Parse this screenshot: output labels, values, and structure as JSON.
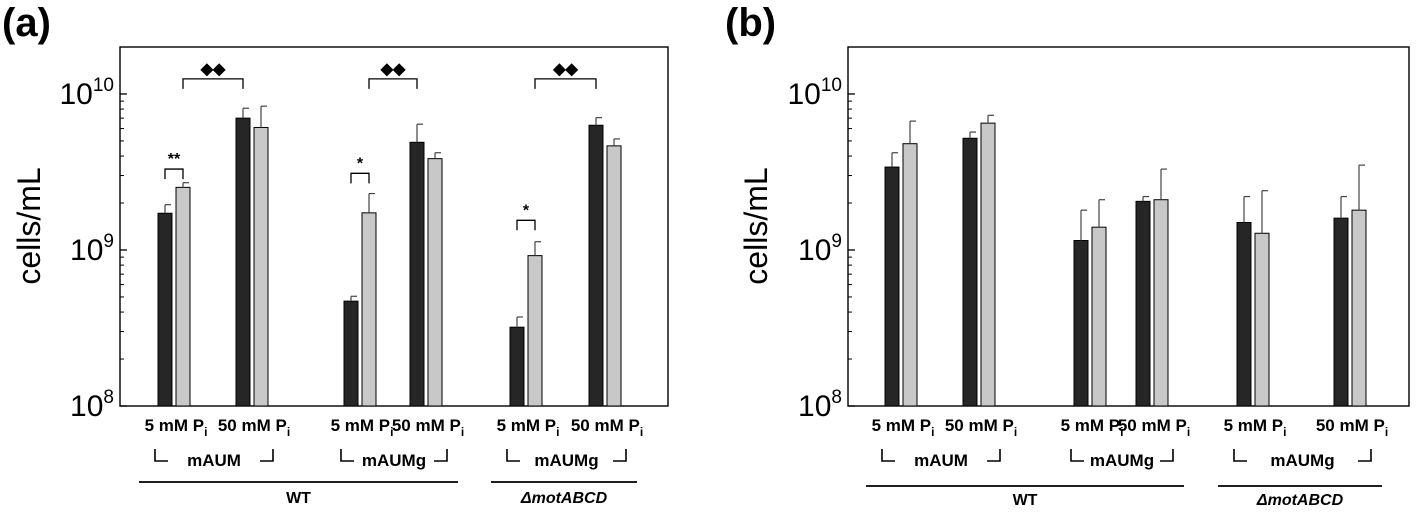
{
  "chart_data": [
    {
      "type": "bar",
      "panel_label": "(a)",
      "ylabel": "cells/mL",
      "yscale": "log",
      "ylim": [
        100000000,
        20000000000
      ],
      "yticks": [
        {
          "base": "10",
          "exp": "8",
          "value": 100000000
        },
        {
          "base": "10",
          "exp": "9",
          "value": 1000000000
        },
        {
          "base": "10",
          "exp": "10",
          "value": 10000000000
        }
      ],
      "colors": {
        "dark": "#262626",
        "light": "#c8c8c8"
      },
      "categories": [
        {
          "main": "5 mM P",
          "sub": "i"
        },
        {
          "main": "50 mM P",
          "sub": "i"
        },
        {
          "main": "5 mM P",
          "sub": "i"
        },
        {
          "main": "50 mM P",
          "sub": "i"
        },
        {
          "main": "5 mM P",
          "sub": "i"
        },
        {
          "main": "50 mM P",
          "sub": "i"
        }
      ],
      "series": [
        {
          "color": "dark",
          "values": [
            1720000000,
            7000000000,
            470000000,
            4900000000,
            320000000,
            6300000000
          ],
          "err_high": [
            1950000000,
            8100000000,
            505000000,
            6400000000,
            372000000,
            7050000000
          ]
        },
        {
          "color": "light",
          "values": [
            2520000000,
            6100000000,
            1730000000,
            3850000000,
            920000000,
            4650000000
          ],
          "err_high": [
            2700000000,
            8350000000,
            2300000000,
            4200000000,
            1130000000,
            5150000000
          ]
        }
      ],
      "groups": [
        {
          "label": "mAUM",
          "from": 0,
          "to": 1
        },
        {
          "label": "mAUMg",
          "from": 2,
          "to": 3
        },
        {
          "label": "mAUMg",
          "from": 4,
          "to": 5
        }
      ],
      "strains": [
        {
          "label": "WT",
          "from": 0,
          "to": 3,
          "italic": false
        },
        {
          "label": "ΔmotABCD",
          "from": 4,
          "to": 5,
          "italic": true
        }
      ],
      "annotations": [
        {
          "type": "pair",
          "text": "**",
          "category": 0,
          "value": 3300000000
        },
        {
          "type": "between",
          "text": "◆◆",
          "from": 0,
          "to": 1,
          "value": 12500000000
        },
        {
          "type": "pair",
          "text": "*",
          "category": 2,
          "value": 3100000000
        },
        {
          "type": "between",
          "text": "◆◆",
          "from": 2,
          "to": 3,
          "value": 12500000000
        },
        {
          "type": "pair",
          "text": "*",
          "category": 4,
          "value": 1550000000
        },
        {
          "type": "between",
          "text": "◆◆",
          "from": 4,
          "to": 5,
          "value": 12500000000
        }
      ]
    },
    {
      "type": "bar",
      "panel_label": "(b)",
      "ylabel": "cells/mL",
      "yscale": "log",
      "ylim": [
        100000000,
        20000000000
      ],
      "yticks": [
        {
          "base": "10",
          "exp": "8",
          "value": 100000000
        },
        {
          "base": "10",
          "exp": "9",
          "value": 1000000000
        },
        {
          "base": "10",
          "exp": "10",
          "value": 10000000000
        }
      ],
      "colors": {
        "dark": "#262626",
        "light": "#c8c8c8"
      },
      "categories": [
        {
          "main": "5 mM P",
          "sub": "i"
        },
        {
          "main": "50 mM P",
          "sub": "i"
        },
        {
          "main": "5 mM P",
          "sub": "i"
        },
        {
          "main": "50 mM P",
          "sub": "i"
        },
        {
          "main": "5 mM P",
          "sub": "i"
        },
        {
          "main": "50 mM P",
          "sub": "i"
        }
      ],
      "series": [
        {
          "color": "dark",
          "values": [
            3400000000,
            5200000000,
            1150000000,
            2050000000,
            1500000000,
            1600000000
          ],
          "err_high": [
            4200000000,
            5700000000,
            1800000000,
            2200000000,
            2200000000,
            2200000000
          ]
        },
        {
          "color": "light",
          "values": [
            4800000000,
            6500000000,
            1400000000,
            2100000000,
            1280000000,
            1800000000
          ],
          "err_high": [
            6700000000,
            7300000000,
            2100000000,
            3300000000,
            2400000000,
            3500000000
          ]
        }
      ],
      "groups": [
        {
          "label": "mAUM",
          "from": 0,
          "to": 1
        },
        {
          "label": "mAUMg",
          "from": 2,
          "to": 3
        },
        {
          "label": "mAUMg",
          "from": 4,
          "to": 5
        }
      ],
      "strains": [
        {
          "label": "WT",
          "from": 0,
          "to": 3,
          "italic": false
        },
        {
          "label": "ΔmotABCD",
          "from": 4,
          "to": 5,
          "italic": true
        }
      ],
      "annotations": []
    }
  ]
}
